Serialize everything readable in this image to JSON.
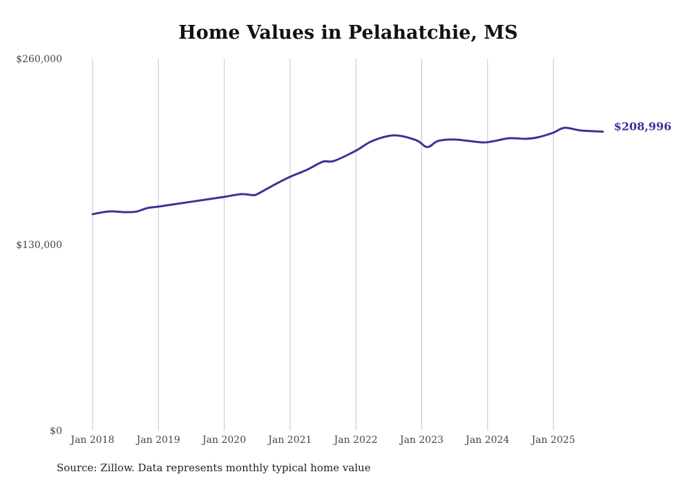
{
  "chart_data": {
    "type": "line",
    "title": "Home Values in Pelahatchie, MS",
    "xlabel": "",
    "ylabel": "",
    "ylim": [
      0,
      260000
    ],
    "yticks": [
      {
        "value": 0,
        "label": "$0"
      },
      {
        "value": 130000,
        "label": "$130,000"
      },
      {
        "value": 260000,
        "label": "$260,000"
      }
    ],
    "xticks": [
      "Jan 2018",
      "Jan 2019",
      "Jan 2020",
      "Jan 2021",
      "Jan 2022",
      "Jan 2023",
      "Jan 2024",
      "Jan 2025"
    ],
    "grid": "vertical",
    "series": [
      {
        "name": "Typical home value",
        "color": "#3a3396",
        "points": [
          {
            "month": "2018-01",
            "value": 151300
          },
          {
            "month": "2018-04",
            "value": 153200
          },
          {
            "month": "2018-07",
            "value": 152700
          },
          {
            "month": "2018-09",
            "value": 153100
          },
          {
            "month": "2018-11",
            "value": 155600
          },
          {
            "month": "2019-01",
            "value": 156600
          },
          {
            "month": "2019-07",
            "value": 160000
          },
          {
            "month": "2020-01",
            "value": 163400
          },
          {
            "month": "2020-04",
            "value": 165300
          },
          {
            "month": "2020-06",
            "value": 164700
          },
          {
            "month": "2020-07",
            "value": 165300
          },
          {
            "month": "2020-10",
            "value": 171600
          },
          {
            "month": "2021-01",
            "value": 177400
          },
          {
            "month": "2021-04",
            "value": 182200
          },
          {
            "month": "2021-07",
            "value": 188000
          },
          {
            "month": "2021-09",
            "value": 188500
          },
          {
            "month": "2022-01",
            "value": 195700
          },
          {
            "month": "2022-04",
            "value": 202500
          },
          {
            "month": "2022-08",
            "value": 206400
          },
          {
            "month": "2022-12",
            "value": 203000
          },
          {
            "month": "2023-02",
            "value": 198200
          },
          {
            "month": "2023-04",
            "value": 202500
          },
          {
            "month": "2023-07",
            "value": 203500
          },
          {
            "month": "2023-12",
            "value": 201500
          },
          {
            "month": "2024-02",
            "value": 202300
          },
          {
            "month": "2024-05",
            "value": 204400
          },
          {
            "month": "2024-08",
            "value": 204000
          },
          {
            "month": "2024-10",
            "value": 204900
          },
          {
            "month": "2025-01",
            "value": 208300
          },
          {
            "month": "2025-03",
            "value": 211700
          },
          {
            "month": "2025-06",
            "value": 209800
          },
          {
            "month": "2025-09",
            "value": 209200
          },
          {
            "month": "2025-10",
            "value": 208996
          }
        ]
      }
    ],
    "annotations": [
      {
        "text": "$208,996",
        "at": "last-point"
      }
    ]
  },
  "source": "Source: Zillow. Data represents monthly typical home value"
}
